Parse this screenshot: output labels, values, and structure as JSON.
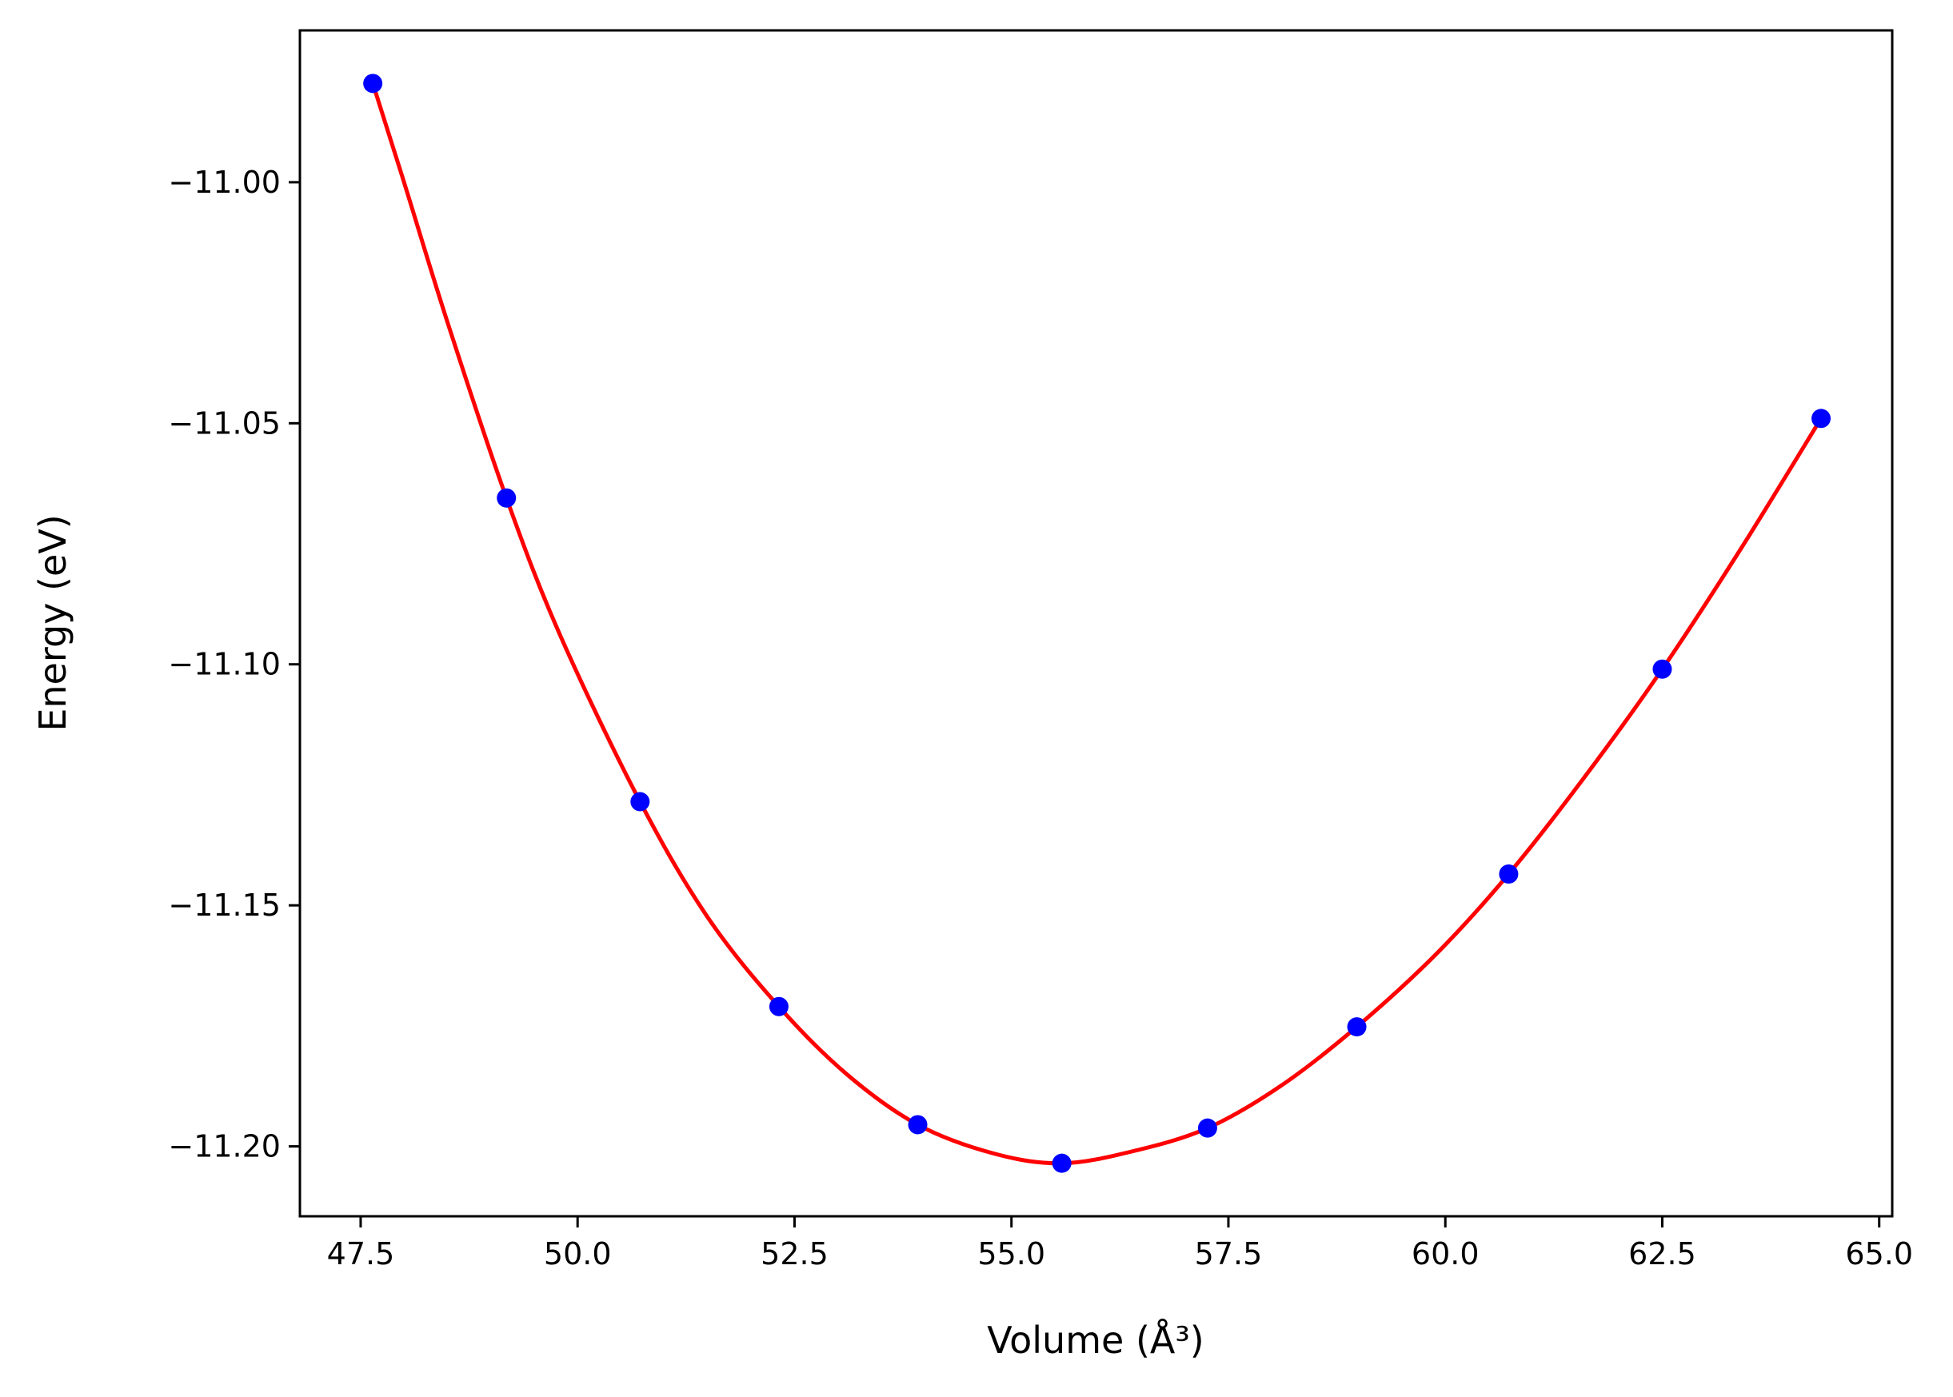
{
  "chart_data": {
    "type": "scatter",
    "xlabel": "Volume (Å³)",
    "ylabel": "Energy (eV)",
    "xlim": [
      46.8,
      65.15
    ],
    "ylim": [
      -11.2145,
      -10.9685
    ],
    "xticks": [
      47.5,
      50.0,
      52.5,
      55.0,
      57.5,
      60.0,
      62.5,
      65.0
    ],
    "xtick_labels": [
      "47.5",
      "50.0",
      "52.5",
      "55.0",
      "57.5",
      "60.0",
      "62.5",
      "65.0"
    ],
    "yticks": [
      -11.0,
      -11.05,
      -11.1,
      -11.15,
      -11.2
    ],
    "ytick_labels": [
      "−11.00",
      "−11.05",
      "−11.10",
      "−11.15",
      "−11.20"
    ],
    "grid": false,
    "series": [
      {
        "kind": "points",
        "color": "#0000ff",
        "x": [
          47.64,
          49.18,
          50.72,
          52.32,
          53.92,
          55.58,
          57.26,
          58.98,
          60.73,
          62.5,
          64.33
        ],
        "y": [
          -10.9795,
          -11.0655,
          -11.1285,
          -11.171,
          -11.1955,
          -11.2035,
          -11.1962,
          -11.1752,
          -11.1435,
          -11.101,
          -11.049
        ]
      },
      {
        "kind": "fit-curve",
        "color": "#ff0000",
        "x": [
          47.64,
          48.0,
          48.5,
          49.18,
          49.8,
          50.72,
          51.5,
          52.32,
          53.1,
          53.92,
          54.8,
          55.58,
          56.4,
          57.26,
          58.1,
          58.98,
          59.9,
          60.73,
          61.6,
          62.5,
          63.4,
          64.33
        ],
        "y": [
          -10.9795,
          -11.0,
          -11.029,
          -11.0655,
          -11.094,
          -11.1285,
          -11.1525,
          -11.171,
          -11.185,
          -11.1955,
          -11.2015,
          -11.2035,
          -11.201,
          -11.1962,
          -11.1875,
          -11.1752,
          -11.16,
          -11.1435,
          -11.1235,
          -11.101,
          -11.0762,
          -11.049
        ]
      }
    ]
  }
}
